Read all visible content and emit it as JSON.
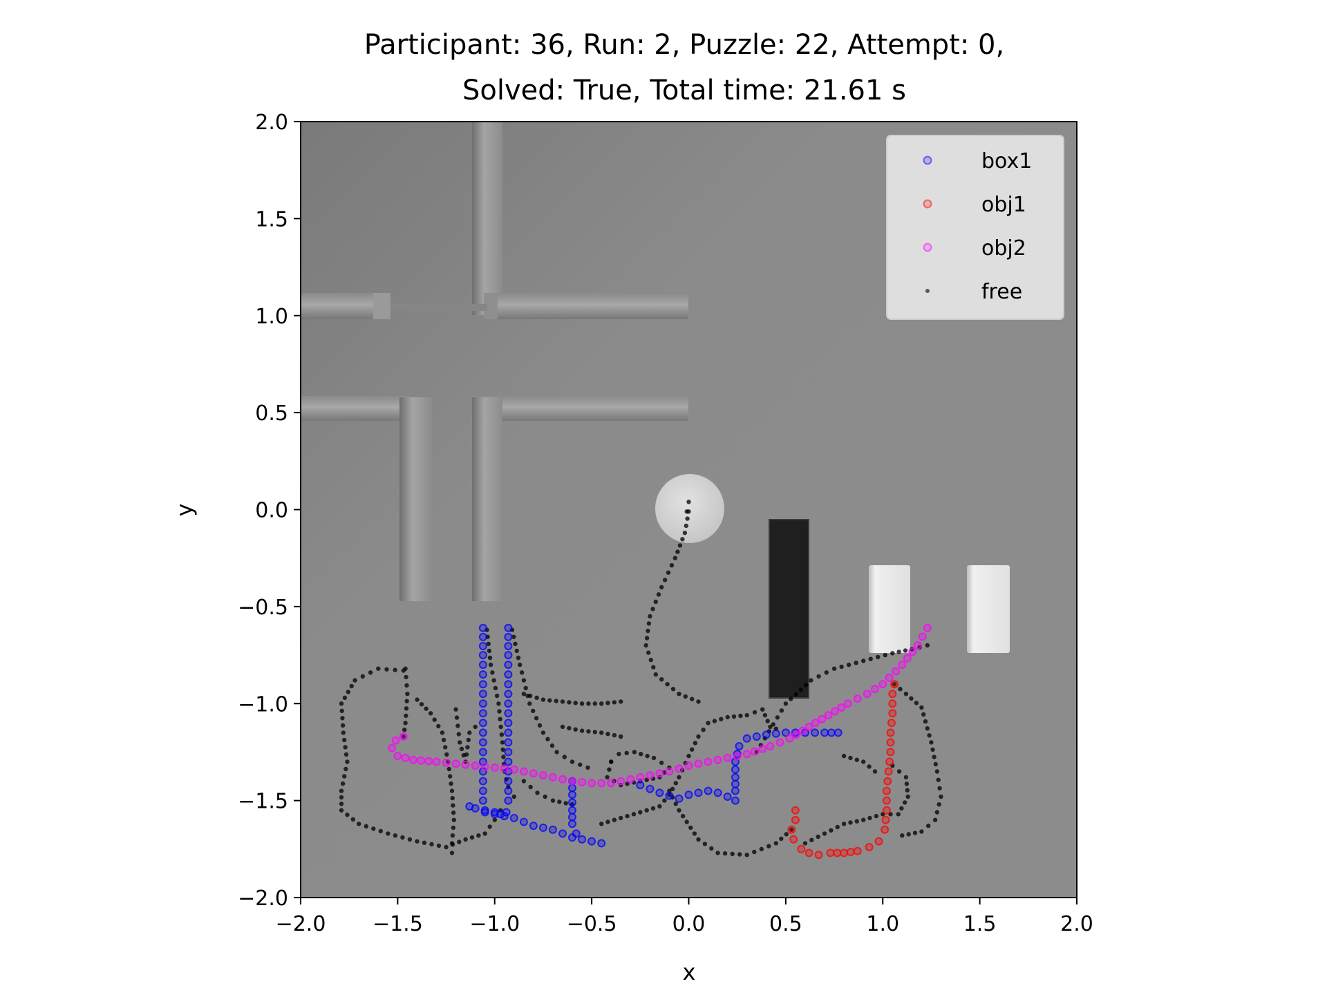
{
  "chart_data": {
    "type": "scatter",
    "title_lines": [
      "Participant: 36, Run: 2, Puzzle: 22, Attempt: 0,",
      "Solved: True, Total time: 21.61 s"
    ],
    "xlabel": "x",
    "ylabel": "y",
    "xlim": [
      -2.0,
      2.0
    ],
    "ylim": [
      -2.0,
      2.0
    ],
    "xticks": [
      -2.0,
      -1.5,
      -1.0,
      -0.5,
      0.0,
      0.5,
      1.0,
      1.5,
      2.0
    ],
    "yticks": [
      -2.0,
      -1.5,
      -1.0,
      -0.5,
      0.0,
      0.5,
      1.0,
      1.5,
      2.0
    ],
    "xtick_labels": [
      "−2.0",
      "−1.5",
      "−1.0",
      "−0.5",
      "0.0",
      "0.5",
      "1.0",
      "1.5",
      "2.0"
    ],
    "ytick_labels": [
      "−2.0",
      "−1.5",
      "−1.0",
      "−0.5",
      "0.0",
      "0.5",
      "1.0",
      "1.5",
      "2.0"
    ],
    "grid": false,
    "background": "grey rendered scene with maze walls and objects",
    "legend_placement": "top-right",
    "series": [
      {
        "name": "box1",
        "color": "#0000ff",
        "marker": "hollow-circle",
        "segments": [
          [
            [
              -1.06,
              -0.61
            ],
            [
              -1.06,
              -0.75
            ],
            [
              -1.06,
              -0.9
            ],
            [
              -1.06,
              -1.05
            ],
            [
              -1.06,
              -1.2
            ],
            [
              -1.06,
              -1.35
            ],
            [
              -1.06,
              -1.5
            ],
            [
              -1.05,
              -1.56
            ],
            [
              -1.0,
              -1.57
            ],
            [
              -0.95,
              -1.58
            ],
            [
              -0.9,
              -1.59
            ],
            [
              -0.85,
              -1.61
            ],
            [
              -0.8,
              -1.63
            ],
            [
              -0.75,
              -1.64
            ],
            [
              -0.7,
              -1.65
            ],
            [
              -0.65,
              -1.67
            ],
            [
              -0.6,
              -1.69
            ],
            [
              -0.55,
              -1.7
            ],
            [
              -0.5,
              -1.71
            ],
            [
              -0.45,
              -1.72
            ]
          ],
          [
            [
              -0.93,
              -0.61
            ],
            [
              -0.93,
              -0.75
            ],
            [
              -0.93,
              -0.9
            ],
            [
              -0.93,
              -1.05
            ],
            [
              -0.93,
              -1.2
            ],
            [
              -0.93,
              -1.35
            ],
            [
              -0.93,
              -1.5
            ],
            [
              -0.94,
              -1.56
            ]
          ],
          [
            [
              -1.13,
              -1.53
            ],
            [
              -1.1,
              -1.54
            ],
            [
              -1.05,
              -1.55
            ],
            [
              -1.0,
              -1.56
            ],
            [
              -0.97,
              -1.57
            ]
          ],
          [
            [
              -0.6,
              -1.4
            ],
            [
              -0.6,
              -1.47
            ],
            [
              -0.6,
              -1.55
            ],
            [
              -0.6,
              -1.62
            ],
            [
              -0.58,
              -1.67
            ]
          ],
          [
            [
              -0.25,
              -1.42
            ],
            [
              -0.2,
              -1.44
            ],
            [
              -0.15,
              -1.46
            ],
            [
              -0.05,
              -1.49
            ],
            [
              0.0,
              -1.47
            ],
            [
              0.05,
              -1.46
            ],
            [
              0.1,
              -1.45
            ],
            [
              0.15,
              -1.46
            ],
            [
              0.2,
              -1.48
            ],
            [
              0.24,
              -1.5
            ]
          ],
          [
            [
              0.24,
              -1.45
            ],
            [
              0.24,
              -1.38
            ],
            [
              0.24,
              -1.3
            ],
            [
              0.26,
              -1.22
            ],
            [
              0.3,
              -1.18
            ],
            [
              0.4,
              -1.16
            ],
            [
              0.5,
              -1.15
            ],
            [
              0.6,
              -1.15
            ],
            [
              0.7,
              -1.15
            ],
            [
              0.77,
              -1.15
            ]
          ]
        ]
      },
      {
        "name": "obj1",
        "color": "#ff0000",
        "marker": "hollow-circle",
        "segments": [
          [
            [
              0.55,
              -1.55
            ],
            [
              0.55,
              -1.6
            ],
            [
              0.53,
              -1.65
            ],
            [
              0.54,
              -1.7
            ],
            [
              0.58,
              -1.75
            ],
            [
              0.62,
              -1.77
            ],
            [
              0.67,
              -1.78
            ],
            [
              0.73,
              -1.77
            ],
            [
              0.8,
              -1.77
            ],
            [
              0.87,
              -1.76
            ],
            [
              0.93,
              -1.74
            ],
            [
              0.98,
              -1.71
            ],
            [
              1.01,
              -1.65
            ],
            [
              1.02,
              -1.55
            ],
            [
              1.02,
              -1.45
            ],
            [
              1.03,
              -1.35
            ],
            [
              1.04,
              -1.25
            ],
            [
              1.04,
              -1.15
            ],
            [
              1.05,
              -1.05
            ],
            [
              1.05,
              -0.95
            ],
            [
              1.06,
              -0.9
            ]
          ]
        ]
      },
      {
        "name": "obj2",
        "color": "#ff00ff",
        "marker": "hollow-circle",
        "segments": [
          [
            [
              -1.47,
              -1.17
            ],
            [
              -1.51,
              -1.19
            ],
            [
              -1.53,
              -1.23
            ],
            [
              -1.5,
              -1.27
            ],
            [
              -1.42,
              -1.29
            ],
            [
              -1.3,
              -1.3
            ],
            [
              -1.2,
              -1.31
            ],
            [
              -1.1,
              -1.32
            ],
            [
              -1.0,
              -1.33
            ],
            [
              -0.9,
              -1.34
            ],
            [
              -0.8,
              -1.36
            ],
            [
              -0.7,
              -1.38
            ],
            [
              -0.6,
              -1.4
            ],
            [
              -0.5,
              -1.41
            ],
            [
              -0.4,
              -1.41
            ],
            [
              -0.3,
              -1.39
            ],
            [
              -0.2,
              -1.37
            ],
            [
              -0.1,
              -1.35
            ],
            [
              0.0,
              -1.32
            ],
            [
              0.1,
              -1.3
            ],
            [
              0.2,
              -1.28
            ],
            [
              0.3,
              -1.26
            ],
            [
              0.42,
              -1.22
            ],
            [
              0.52,
              -1.18
            ],
            [
              0.62,
              -1.12
            ],
            [
              0.72,
              -1.06
            ],
            [
              0.82,
              -1.0
            ],
            [
              0.92,
              -0.95
            ],
            [
              1.0,
              -0.9
            ],
            [
              1.1,
              -0.8
            ],
            [
              1.18,
              -0.7
            ],
            [
              1.23,
              -0.61
            ]
          ]
        ]
      },
      {
        "name": "free",
        "color": "#000000",
        "marker": "dot",
        "segments": [
          [
            [
              -1.47,
              -0.83
            ],
            [
              -1.6,
              -0.82
            ],
            [
              -1.72,
              -0.88
            ],
            [
              -1.79,
              -1.0
            ],
            [
              -1.78,
              -1.15
            ],
            [
              -1.76,
              -1.3
            ],
            [
              -1.79,
              -1.45
            ],
            [
              -1.79,
              -1.55
            ],
            [
              -1.7,
              -1.62
            ],
            [
              -1.55,
              -1.67
            ],
            [
              -1.4,
              -1.71
            ],
            [
              -1.25,
              -1.74
            ],
            [
              -1.15,
              -1.7
            ],
            [
              -1.05,
              -1.67
            ],
            [
              -1.0,
              -1.6
            ],
            [
              -0.97,
              -1.55
            ]
          ],
          [
            [
              -1.46,
              -0.82
            ],
            [
              -1.45,
              -0.95
            ],
            [
              -1.46,
              -1.1
            ],
            [
              -1.47,
              -1.17
            ]
          ],
          [
            [
              -1.4,
              -0.98
            ],
            [
              -1.33,
              -1.05
            ],
            [
              -1.27,
              -1.15
            ],
            [
              -1.24,
              -1.3
            ],
            [
              -1.22,
              -1.45
            ],
            [
              -1.21,
              -1.6
            ],
            [
              -1.22,
              -1.72
            ],
            [
              -1.22,
              -1.77
            ]
          ],
          [
            [
              -1.2,
              -1.03
            ],
            [
              -1.18,
              -1.2
            ],
            [
              -1.15,
              -1.3
            ],
            [
              -1.13,
              -1.15
            ],
            [
              -1.1,
              -1.12
            ]
          ],
          [
            [
              -1.04,
              -0.62
            ],
            [
              -1.02,
              -0.8
            ],
            [
              -0.98,
              -1.0
            ],
            [
              -0.96,
              -1.2
            ],
            [
              -0.95,
              -1.35
            ],
            [
              -0.93,
              -1.43
            ],
            [
              -0.9,
              -1.48
            ]
          ],
          [
            [
              -0.91,
              -0.62
            ],
            [
              -0.87,
              -0.8
            ],
            [
              -0.82,
              -1.0
            ],
            [
              -0.75,
              -1.15
            ],
            [
              -0.68,
              -1.25
            ],
            [
              -0.6,
              -1.3
            ],
            [
              -0.52,
              -1.33
            ]
          ],
          [
            [
              -0.85,
              -0.95
            ],
            [
              -0.75,
              -0.98
            ],
            [
              -0.65,
              -0.99
            ],
            [
              -0.55,
              -1.0
            ],
            [
              -0.45,
              -1.0
            ],
            [
              -0.35,
              -0.99
            ]
          ],
          [
            [
              -0.85,
              -1.4
            ],
            [
              -0.78,
              -1.46
            ],
            [
              -0.7,
              -1.5
            ],
            [
              -0.6,
              -1.52
            ]
          ],
          [
            [
              -0.65,
              -1.12
            ],
            [
              -0.55,
              -1.14
            ],
            [
              -0.45,
              -1.15
            ],
            [
              -0.35,
              -1.17
            ]
          ],
          [
            [
              -0.4,
              -1.3
            ],
            [
              -0.42,
              -1.38
            ],
            [
              -0.35,
              -1.42
            ],
            [
              -0.25,
              -1.4
            ],
            [
              -0.15,
              -1.38
            ],
            [
              -0.1,
              -1.33
            ],
            [
              -0.18,
              -1.28
            ],
            [
              -0.28,
              -1.25
            ],
            [
              -0.36,
              -1.26
            ],
            [
              -0.4,
              -1.3
            ]
          ],
          [
            [
              -0.45,
              -1.62
            ],
            [
              -0.35,
              -1.59
            ],
            [
              -0.25,
              -1.56
            ],
            [
              -0.15,
              -1.53
            ],
            [
              -0.1,
              -1.47
            ],
            [
              -0.05,
              -1.38
            ],
            [
              0.0,
              -1.27
            ],
            [
              0.05,
              -1.17
            ],
            [
              0.1,
              -1.1
            ],
            [
              0.2,
              -1.07
            ],
            [
              0.3,
              -1.06
            ],
            [
              0.38,
              -1.03
            ],
            [
              0.42,
              -1.12
            ],
            [
              0.45,
              -1.13
            ]
          ],
          [
            [
              0.0,
              -0.01
            ],
            [
              -0.02,
              -0.12
            ],
            [
              -0.07,
              -0.25
            ],
            [
              -0.14,
              -0.4
            ],
            [
              -0.2,
              -0.55
            ],
            [
              -0.22,
              -0.7
            ],
            [
              -0.17,
              -0.85
            ],
            [
              -0.05,
              -0.95
            ],
            [
              0.05,
              -0.99
            ]
          ],
          [
            [
              -0.1,
              -1.45
            ],
            [
              -0.05,
              -1.55
            ],
            [
              0.05,
              -1.7
            ],
            [
              0.15,
              -1.77
            ],
            [
              0.3,
              -1.78
            ],
            [
              0.45,
              -1.72
            ],
            [
              0.53,
              -1.65
            ]
          ],
          [
            [
              0.6,
              -1.72
            ],
            [
              0.7,
              -1.67
            ],
            [
              0.8,
              -1.62
            ],
            [
              0.9,
              -1.6
            ],
            [
              1.0,
              -1.57
            ],
            [
              1.08,
              -1.57
            ],
            [
              1.13,
              -1.48
            ],
            [
              1.12,
              -1.38
            ],
            [
              1.05,
              -1.32
            ]
          ],
          [
            [
              1.06,
              -0.9
            ],
            [
              1.12,
              -0.95
            ],
            [
              1.2,
              -1.02
            ],
            [
              1.25,
              -1.2
            ],
            [
              1.28,
              -1.35
            ],
            [
              1.3,
              -1.48
            ],
            [
              1.27,
              -1.6
            ],
            [
              1.2,
              -1.66
            ],
            [
              1.1,
              -1.68
            ]
          ],
          [
            [
              0.35,
              -1.25
            ],
            [
              0.5,
              -1.0
            ],
            [
              0.63,
              -0.88
            ],
            [
              0.75,
              -0.82
            ],
            [
              0.9,
              -0.78
            ],
            [
              1.05,
              -0.74
            ],
            [
              1.15,
              -0.72
            ],
            [
              1.23,
              -0.7
            ]
          ],
          [
            [
              0.8,
              -1.27
            ],
            [
              0.9,
              -1.3
            ],
            [
              0.96,
              -1.35
            ]
          ],
          [
            [
              0.0,
              0.04
            ],
            [
              -0.01,
              -0.01
            ]
          ]
        ]
      }
    ]
  }
}
